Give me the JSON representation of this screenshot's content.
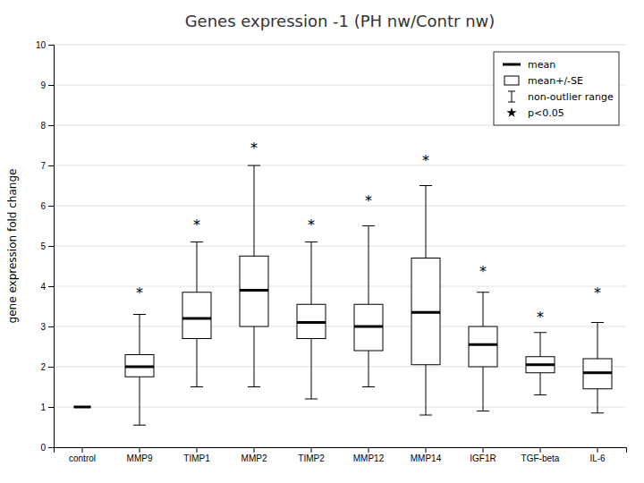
{
  "chart_data": {
    "type": "box",
    "title": "Genes expression -1 (PH nw/Contr nw)",
    "y_label": "gene expression fold change",
    "categories": [
      "control",
      "MMP9",
      "TIMP1",
      "MMP2",
      "TIMP2",
      "MMP12",
      "MMP14",
      "IGF1R",
      "TGF-beta",
      "IL-6"
    ],
    "mean": [
      1.0,
      2.0,
      3.2,
      3.9,
      3.1,
      3.0,
      3.35,
      2.55,
      2.05,
      1.85
    ],
    "whislo": [
      null,
      0.55,
      1.5,
      1.5,
      1.2,
      1.5,
      0.8,
      0.9,
      1.3,
      0.85
    ],
    "whishi": [
      null,
      3.3,
      5.1,
      7.0,
      5.1,
      5.5,
      6.5,
      3.85,
      2.85,
      3.1
    ],
    "se_lo": [
      null,
      1.75,
      2.7,
      3.0,
      2.7,
      2.4,
      2.05,
      2.0,
      1.85,
      1.45
    ],
    "se_hi": [
      null,
      2.3,
      3.85,
      4.75,
      3.55,
      3.55,
      4.7,
      3.0,
      2.25,
      2.2
    ],
    "significance": [
      false,
      true,
      true,
      true,
      true,
      true,
      true,
      true,
      true,
      true
    ],
    "sig_positions": [
      null,
      3.9,
      5.6,
      7.5,
      5.6,
      6.2,
      7.2,
      4.45,
      3.3,
      3.9
    ],
    "sig_label": "*",
    "legend_labels": [
      "mean",
      "mean+/-SE",
      "non-outlier range",
      "p<0.05"
    ],
    "color": "#000000",
    "ylim": [
      0,
      10
    ],
    "yticks": [
      0,
      1,
      2,
      3,
      4,
      5,
      6,
      7,
      8,
      9,
      10
    ],
    "grid": true,
    "legend": "upper right"
  }
}
